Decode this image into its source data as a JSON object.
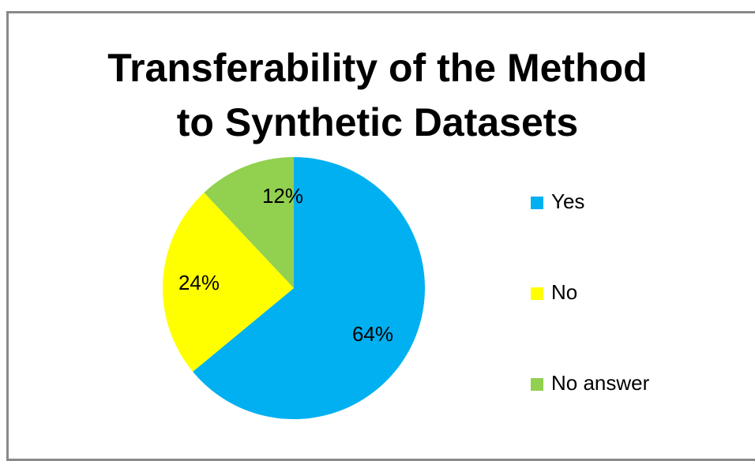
{
  "chart_data": {
    "type": "pie",
    "title_lines": [
      "Transferability of the Method",
      "to Synthetic Datasets"
    ],
    "slices": [
      {
        "label": "Yes",
        "value": 64,
        "display": "64%",
        "color": "#00b0f0"
      },
      {
        "label": "No",
        "value": 24,
        "display": "24%",
        "color": "#ffff00"
      },
      {
        "label": "No answer",
        "value": 12,
        "display": "12%",
        "color": "#92d050"
      }
    ],
    "legend_position": "right"
  }
}
